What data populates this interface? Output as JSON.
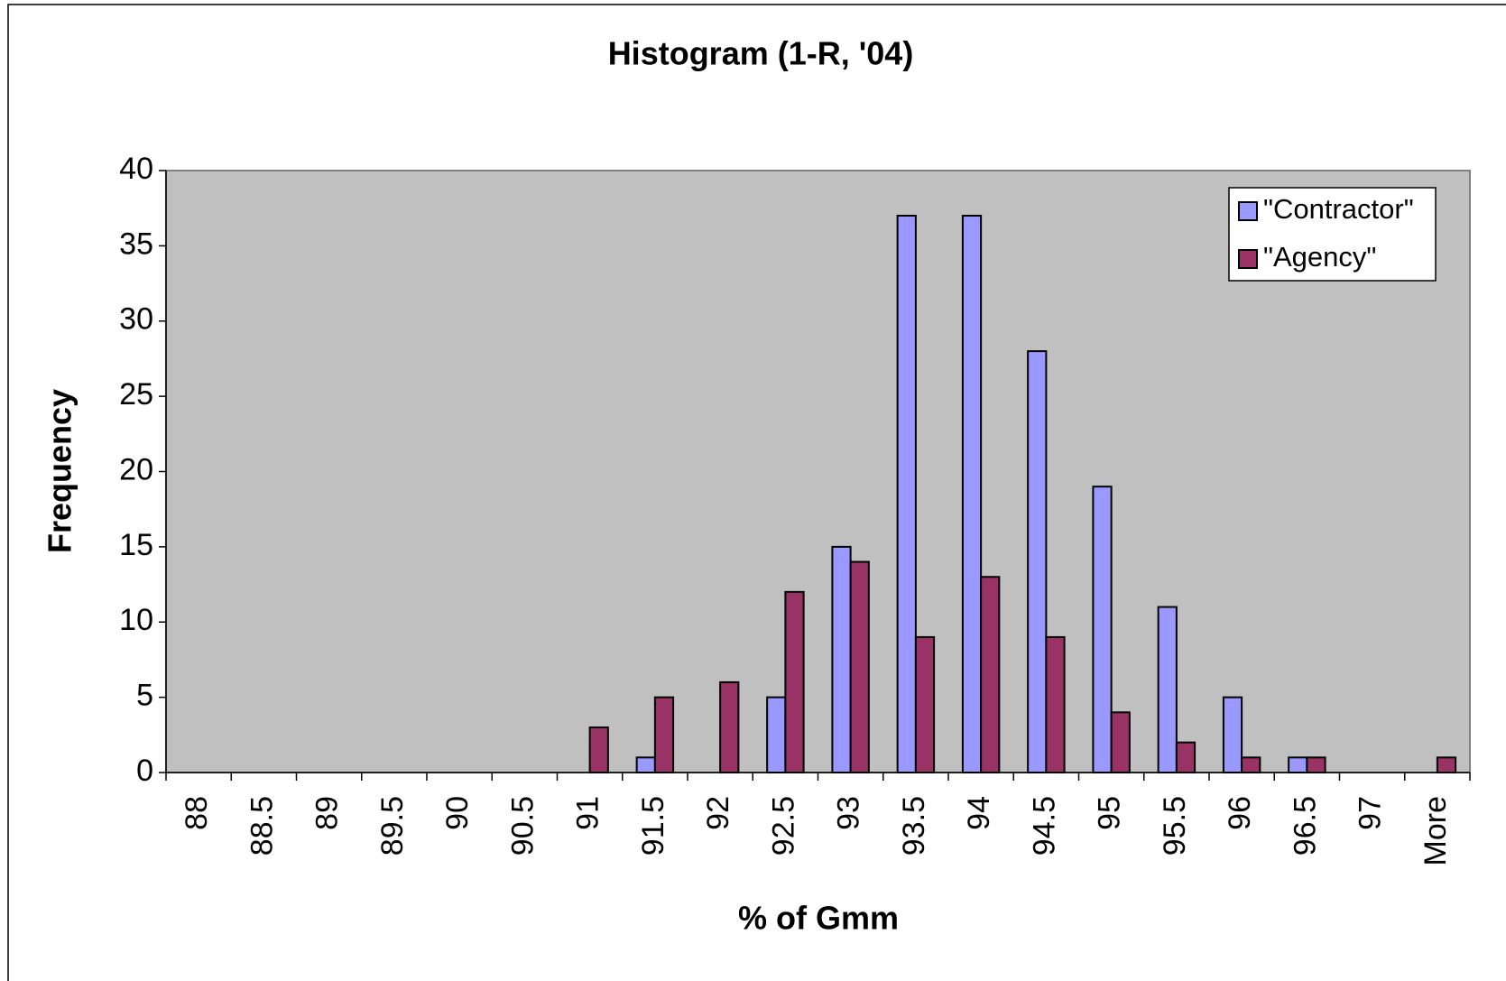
{
  "chart_data": {
    "type": "bar",
    "title": "Histogram (1-R, '04)",
    "x_label": "% of Gmm",
    "y_label": "Frequency",
    "categories": [
      "88",
      "88.5",
      "89",
      "89.5",
      "90",
      "90.5",
      "91",
      "91.5",
      "92",
      "92.5",
      "93",
      "93.5",
      "94",
      "94.5",
      "95",
      "95.5",
      "96",
      "96.5",
      "97",
      "More"
    ],
    "series": [
      {
        "name": "\"Contractor\"",
        "color": "#9999ff",
        "values": [
          0,
          0,
          0,
          0,
          0,
          0,
          0,
          1,
          0,
          5,
          15,
          37,
          37,
          28,
          19,
          11,
          5,
          1,
          0,
          0
        ]
      },
      {
        "name": "\"Agency\"",
        "color": "#993366",
        "values": [
          0,
          0,
          0,
          0,
          0,
          0,
          3,
          5,
          6,
          12,
          14,
          9,
          13,
          9,
          4,
          2,
          1,
          1,
          0,
          1
        ]
      }
    ],
    "ylim": [
      0,
      40
    ],
    "yticks": [
      0,
      5,
      10,
      15,
      20,
      25,
      30,
      35,
      40
    ],
    "plot_background": "#c0c0c0",
    "legend": "top-right"
  }
}
